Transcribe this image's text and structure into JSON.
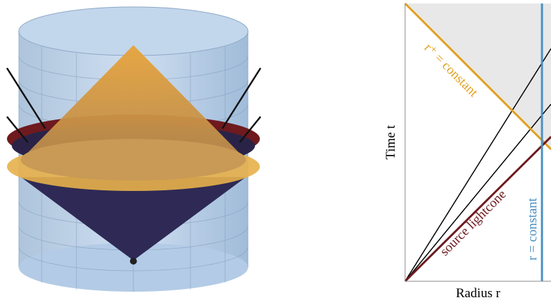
{
  "labels": {
    "r_plus": "r⁺ = constant",
    "time_axis": "Time t",
    "source": "source lightcone",
    "r_const": "r = constant",
    "radius_axis": "Radius r"
  }
}
